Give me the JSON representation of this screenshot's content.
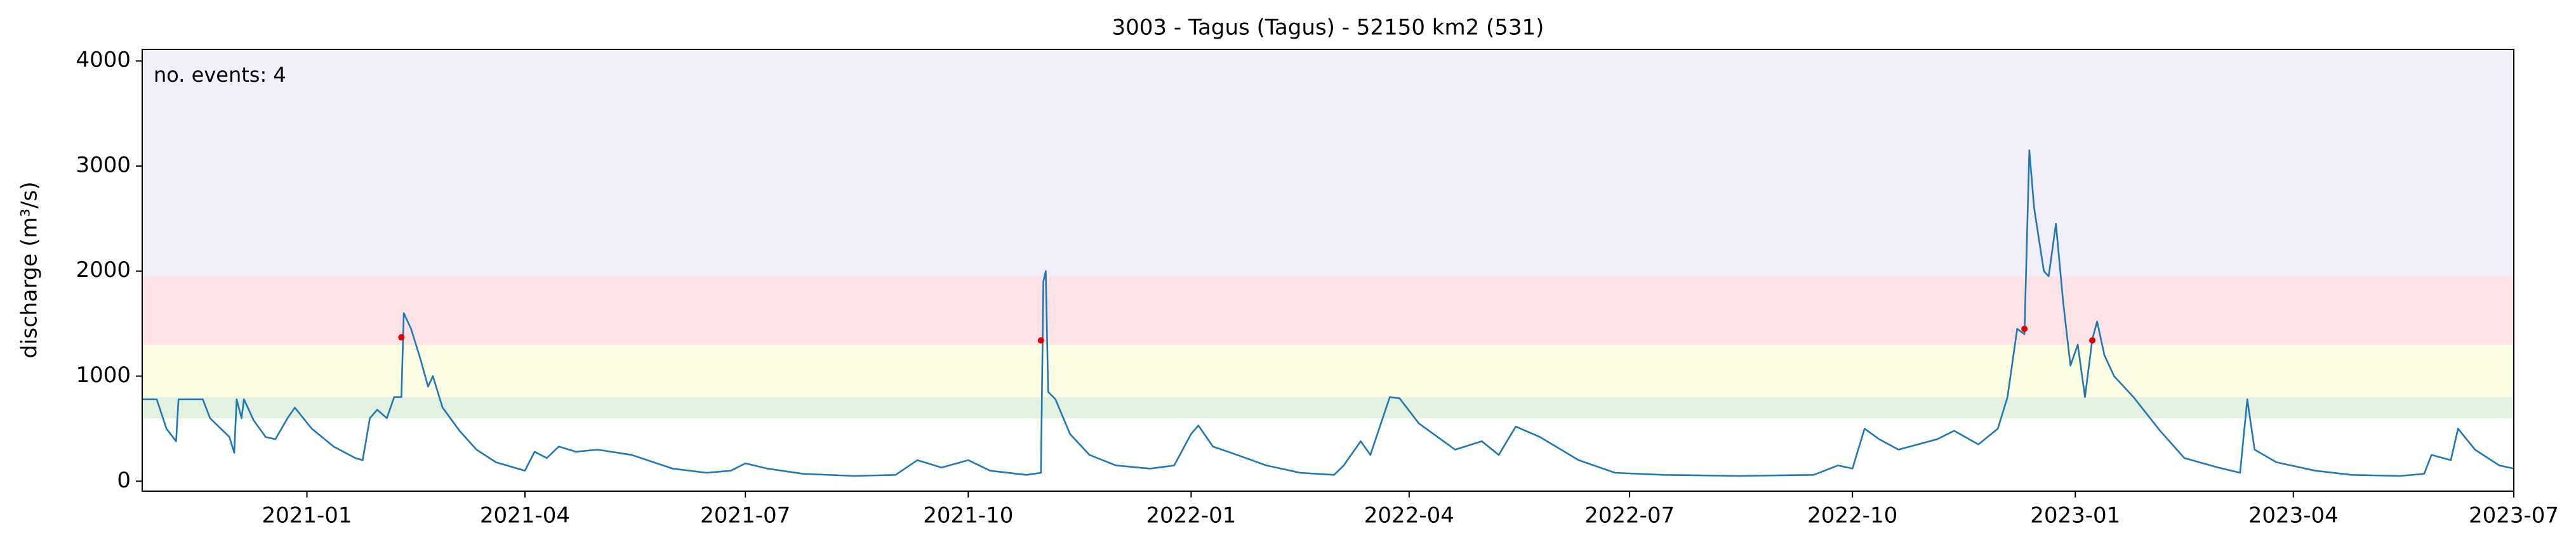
{
  "chart_data": {
    "type": "line",
    "title": "3003 - Tagus (Tagus) - 52150 km2 (531)",
    "ylabel": "discharge (m³/s)",
    "annotation": {
      "text": "no. events: 4",
      "color": "#e00000"
    },
    "color": "#1f77b4",
    "x": [
      "2020-10-25",
      "2020-10-31",
      "2020-11-04",
      "2020-11-08",
      "2020-11-09",
      "2020-11-19",
      "2020-11-22",
      "2020-11-30",
      "2020-12-02",
      "2020-12-03",
      "2020-12-05",
      "2020-12-06",
      "2020-12-10",
      "2020-12-15",
      "2020-12-19",
      "2020-12-24",
      "2020-12-27",
      "2021-01-03",
      "2021-01-12",
      "2021-01-21",
      "2021-01-24",
      "2021-01-27",
      "2021-01-30",
      "2021-02-03",
      "2021-02-06",
      "2021-02-09",
      "2021-02-10",
      "2021-02-13",
      "2021-02-17",
      "2021-02-20",
      "2021-02-22",
      "2021-02-26",
      "2021-03-05",
      "2021-03-12",
      "2021-03-20",
      "2021-04-01",
      "2021-04-05",
      "2021-04-10",
      "2021-04-15",
      "2021-04-22",
      "2021-05-01",
      "2021-05-15",
      "2021-06-01",
      "2021-06-15",
      "2021-06-25",
      "2021-07-01",
      "2021-07-10",
      "2021-07-25",
      "2021-08-15",
      "2021-09-01",
      "2021-09-10",
      "2021-09-20",
      "2021-10-01",
      "2021-10-10",
      "2021-10-25",
      "2021-10-31",
      "2021-11-01",
      "2021-11-02",
      "2021-11-03",
      "2021-11-06",
      "2021-11-12",
      "2021-11-20",
      "2021-12-01",
      "2021-12-15",
      "2021-12-25",
      "2022-01-01",
      "2022-01-04",
      "2022-01-10",
      "2022-01-20",
      "2022-02-01",
      "2022-02-15",
      "2022-03-01",
      "2022-03-05",
      "2022-03-12",
      "2022-03-16",
      "2022-03-24",
      "2022-03-28",
      "2022-04-05",
      "2022-04-20",
      "2022-05-01",
      "2022-05-08",
      "2022-05-15",
      "2022-05-25",
      "2022-06-10",
      "2022-06-25",
      "2022-07-15",
      "2022-08-15",
      "2022-09-15",
      "2022-09-25",
      "2022-10-01",
      "2022-10-06",
      "2022-10-12",
      "2022-10-20",
      "2022-10-28",
      "2022-11-05",
      "2022-11-12",
      "2022-11-22",
      "2022-11-30",
      "2022-12-04",
      "2022-12-08",
      "2022-12-11",
      "2022-12-13",
      "2022-12-15",
      "2022-12-19",
      "2022-12-21",
      "2022-12-24",
      "2022-12-27",
      "2022-12-30",
      "2023-01-02",
      "2023-01-05",
      "2023-01-08",
      "2023-01-10",
      "2023-01-13",
      "2023-01-17",
      "2023-01-25",
      "2023-02-05",
      "2023-02-15",
      "2023-03-01",
      "2023-03-10",
      "2023-03-13",
      "2023-03-16",
      "2023-03-25",
      "2023-04-10",
      "2023-04-25",
      "2023-05-15",
      "2023-05-25",
      "2023-05-28",
      "2023-06-05",
      "2023-06-08",
      "2023-06-15",
      "2023-06-25",
      "2023-07-01"
    ],
    "values": [
      780,
      780,
      500,
      380,
      780,
      780,
      600,
      420,
      270,
      780,
      600,
      780,
      580,
      420,
      400,
      600,
      700,
      500,
      330,
      220,
      200,
      600,
      680,
      600,
      800,
      800,
      1600,
      1450,
      1150,
      900,
      1000,
      700,
      480,
      300,
      180,
      100,
      280,
      220,
      330,
      280,
      300,
      250,
      120,
      80,
      100,
      170,
      120,
      70,
      50,
      60,
      200,
      130,
      200,
      100,
      60,
      80,
      1900,
      2000,
      850,
      780,
      450,
      250,
      150,
      120,
      150,
      450,
      530,
      330,
      250,
      150,
      80,
      60,
      150,
      380,
      250,
      800,
      790,
      550,
      300,
      380,
      250,
      520,
      420,
      200,
      80,
      60,
      50,
      60,
      150,
      120,
      500,
      400,
      300,
      350,
      400,
      480,
      350,
      500,
      800,
      1450,
      1400,
      3150,
      2600,
      2000,
      1950,
      2450,
      1700,
      1100,
      1300,
      800,
      1350,
      1520,
      1200,
      1000,
      800,
      480,
      220,
      130,
      80,
      780,
      300,
      180,
      100,
      60,
      50,
      70,
      250,
      200,
      500,
      300,
      150,
      120
    ],
    "events": {
      "color": "#e00000",
      "x": [
        "2021-02-09",
        "2021-10-31",
        "2022-12-11",
        "2023-01-08"
      ],
      "values": [
        1370,
        1340,
        1450,
        1340
      ]
    },
    "bands": [
      {
        "from": 600,
        "to": 800,
        "color": "#e3f1e1"
      },
      {
        "from": 800,
        "to": 1300,
        "color": "#fdfde3"
      },
      {
        "from": 1300,
        "to": 1950,
        "color": "#fde3e5"
      },
      {
        "from": 1950,
        "to": 4110,
        "color": "#f2eefa"
      }
    ],
    "xlim": [
      "2020-10-25",
      "2023-07-01"
    ],
    "xticks": [
      "2021-01",
      "2021-04",
      "2021-07",
      "2021-10",
      "2022-01",
      "2022-04",
      "2022-07",
      "2022-10",
      "2023-01",
      "2023-04",
      "2023-07"
    ],
    "ylim": [
      -95,
      4110
    ],
    "yticks": [
      0,
      1000,
      2000,
      3000,
      4000
    ]
  }
}
